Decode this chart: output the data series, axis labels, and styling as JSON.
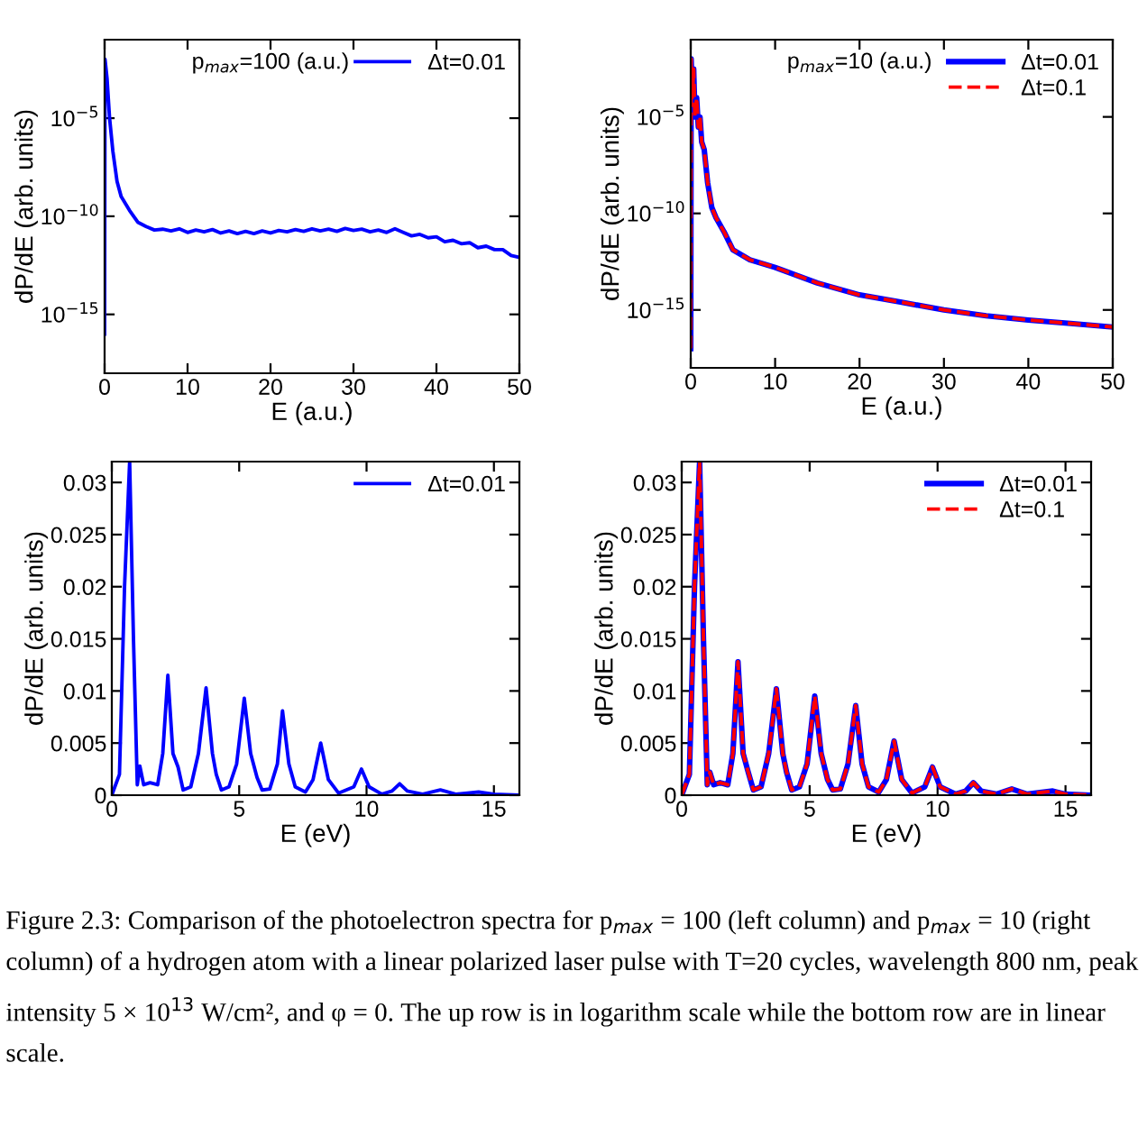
{
  "chart_data": [
    {
      "type": "line",
      "xlabel": "E (a.u.)",
      "ylabel": "dP/dE (arb. units)",
      "log": "y",
      "xlim": [
        0,
        50
      ],
      "xticks": [
        0,
        10,
        20,
        30,
        40,
        50
      ],
      "ylim": [
        1e-18,
        0.1
      ],
      "yticks": [
        {
          "value": 1e-05,
          "label": "10$^{−5}$"
        },
        {
          "value": 1e-10,
          "label": "10$^{−10}$"
        },
        {
          "value": 1e-15,
          "label": "10$^{−15}$"
        }
      ],
      "grid": false,
      "legend": "top right",
      "annotations": [
        "p$_{max}$=100 (a.u.)"
      ],
      "x": [
        0,
        0.05,
        0.3,
        0.6,
        1.0,
        1.5,
        2,
        3,
        4,
        5,
        6,
        7,
        8,
        9,
        10,
        11,
        12,
        13,
        14,
        15,
        16,
        17,
        18,
        19,
        20,
        21,
        22,
        23,
        24,
        25,
        26,
        27,
        28,
        29,
        30,
        31,
        32,
        33,
        34,
        35,
        36,
        37,
        38,
        39,
        40,
        41,
        42,
        43,
        44,
        45,
        46,
        47,
        48,
        49,
        50
      ],
      "series": [
        {
          "name": "Δt=0.01",
          "color": "#0000ff",
          "line_style": "solid",
          "values": [
            1e-16,
            0.01,
            0.001,
            1e-05,
            2e-07,
            6e-09,
            1e-09,
            2e-10,
            5e-11,
            3e-11,
            2e-11,
            2.2e-11,
            1.8e-11,
            2.3e-11,
            1.5e-11,
            2e-11,
            1.6e-11,
            2.1e-11,
            1.4e-11,
            1.8e-11,
            1.3e-11,
            1.7e-11,
            1.3e-11,
            1.8e-11,
            1.4e-11,
            1.9e-11,
            1.6e-11,
            2.1e-11,
            1.7e-11,
            2.3e-11,
            1.8e-11,
            2.2e-11,
            1.7e-11,
            2.4e-11,
            1.9e-11,
            2.2e-11,
            1.6e-11,
            2e-11,
            1.5e-11,
            2.3e-11,
            1.5e-11,
            1e-11,
            1.2e-11,
            8e-12,
            9e-12,
            5e-12,
            6e-12,
            4e-12,
            4.5e-12,
            2.5e-12,
            3e-12,
            2e-12,
            2e-12,
            1e-12,
            8e-13
          ]
        }
      ]
    },
    {
      "type": "line",
      "xlabel": "E (a.u.)",
      "ylabel": "dP/dE (arb. units)",
      "log": "y",
      "xlim": [
        0,
        50
      ],
      "xticks": [
        0,
        10,
        20,
        30,
        40,
        50
      ],
      "ylim": [
        1e-18,
        0.1
      ],
      "yticks": [
        {
          "value": 1e-05,
          "label": "10$^{−5}$"
        },
        {
          "value": 1e-10,
          "label": "10$^{−10}$"
        },
        {
          "value": 1e-15,
          "label": "10$^{−15}$"
        }
      ],
      "grid": false,
      "legend": "top right",
      "annotations": [
        "p$_{max}$=10 (a.u.)"
      ],
      "x": [
        0,
        0.05,
        0.2,
        0.35,
        0.5,
        0.7,
        0.9,
        1.1,
        1.3,
        1.6,
        2,
        2.5,
        3,
        4,
        5,
        7,
        10,
        15,
        20,
        25,
        30,
        35,
        40,
        45,
        50
      ],
      "series": [
        {
          "name": "Δt=0.01",
          "color": "#0000ff",
          "line_style": "solid",
          "values": [
            1e-17,
            0.01,
            0.0001,
            0.003,
            1e-05,
            0.0001,
            3e-06,
            1e-05,
            5e-07,
            2e-07,
            4e-09,
            2e-10,
            6e-11,
            1e-11,
            1.3e-12,
            4e-13,
            1.6e-13,
            2.5e-14,
            6e-15,
            2.5e-15,
            1e-15,
            5e-16,
            3e-16,
            2e-16,
            1.3e-16
          ]
        },
        {
          "name": "Δt=0.1",
          "color": "#ff0000",
          "line_style": "dashed",
          "values": [
            1e-17,
            0.01,
            0.0001,
            0.003,
            1e-05,
            0.0001,
            3e-06,
            1e-05,
            5e-07,
            2e-07,
            4e-09,
            2e-10,
            6e-11,
            1e-11,
            1.3e-12,
            4e-13,
            1.6e-13,
            2.5e-14,
            6e-15,
            2.5e-15,
            1e-15,
            5e-16,
            3e-16,
            2e-16,
            1.3e-16
          ]
        }
      ]
    },
    {
      "type": "line",
      "xlabel": "E (eV)",
      "ylabel": "dP/dE (arb. units)",
      "xlim": [
        0,
        16
      ],
      "xticks": [
        0,
        5,
        10,
        15
      ],
      "ylim": [
        0,
        0.032
      ],
      "yticks": [
        0,
        0.005,
        0.01,
        0.015,
        0.02,
        0.025,
        0.03
      ],
      "grid": false,
      "legend": "top right",
      "x": [
        0,
        0.3,
        0.5,
        0.7,
        0.85,
        1.0,
        1.1,
        1.25,
        1.5,
        1.8,
        2.0,
        2.2,
        2.4,
        2.6,
        2.8,
        3.1,
        3.4,
        3.7,
        3.95,
        4.1,
        4.3,
        4.6,
        4.9,
        5.2,
        5.45,
        5.7,
        5.9,
        6.2,
        6.5,
        6.7,
        6.95,
        7.2,
        7.6,
        7.9,
        8.2,
        8.5,
        8.9,
        9.5,
        9.8,
        10.1,
        10.6,
        11.0,
        11.3,
        11.6,
        12.2,
        12.9,
        13.5,
        14.4,
        15,
        16
      ],
      "series": [
        {
          "name": "Δt=0.01",
          "color": "#0000ff",
          "line_style": "solid",
          "values": [
            0,
            0.002,
            0.02,
            0.032,
            0.015,
            0.001,
            0.0028,
            0.001,
            0.0012,
            0.001,
            0.004,
            0.0115,
            0.004,
            0.0027,
            0.0005,
            0.0008,
            0.004,
            0.0103,
            0.004,
            0.002,
            0.0005,
            0.0008,
            0.003,
            0.0093,
            0.004,
            0.0017,
            0.0005,
            0.0006,
            0.003,
            0.0081,
            0.003,
            0.0008,
            0.0003,
            0.0015,
            0.005,
            0.0015,
            0.0002,
            0.0008,
            0.0025,
            0.0008,
            0.0001,
            0.0004,
            0.0011,
            0.0004,
            0.0001,
            0.0005,
            0.0001,
            0.0003,
            0.0001,
            0
          ]
        }
      ]
    },
    {
      "type": "line",
      "xlabel": "E (eV)",
      "ylabel": "dP/dE (arb. units)",
      "xlim": [
        0,
        16
      ],
      "xticks": [
        0,
        5,
        10,
        15
      ],
      "ylim": [
        0,
        0.032
      ],
      "yticks": [
        0,
        0.005,
        0.01,
        0.015,
        0.02,
        0.025,
        0.03
      ],
      "grid": false,
      "legend": "top right",
      "x": [
        0,
        0.3,
        0.5,
        0.7,
        0.85,
        1.0,
        1.1,
        1.25,
        1.5,
        1.8,
        2.0,
        2.2,
        2.4,
        2.6,
        2.8,
        3.1,
        3.4,
        3.7,
        3.95,
        4.1,
        4.3,
        4.6,
        4.9,
        5.2,
        5.45,
        5.7,
        5.9,
        6.2,
        6.5,
        6.8,
        7.05,
        7.3,
        7.7,
        8.0,
        8.3,
        8.6,
        9.0,
        9.5,
        9.8,
        10.1,
        10.7,
        11.1,
        11.4,
        11.7,
        12.3,
        12.9,
        13.5,
        14.5,
        15,
        16
      ],
      "series": [
        {
          "name": "Δt=0.01",
          "color": "#0000ff",
          "line_style": "solid",
          "values": [
            0,
            0.002,
            0.02,
            0.032,
            0.015,
            0.001,
            0.0022,
            0.001,
            0.0012,
            0.001,
            0.004,
            0.0128,
            0.004,
            0.0022,
            0.0005,
            0.0008,
            0.004,
            0.0102,
            0.004,
            0.0022,
            0.0005,
            0.0008,
            0.003,
            0.0095,
            0.004,
            0.0015,
            0.0005,
            0.0006,
            0.003,
            0.0086,
            0.003,
            0.0008,
            0.0003,
            0.0015,
            0.0052,
            0.0015,
            0.0002,
            0.0008,
            0.0027,
            0.0008,
            0.0001,
            0.0004,
            0.0012,
            0.0004,
            0.0001,
            0.0006,
            0.0001,
            0.0004,
            0.0001,
            0
          ]
        },
        {
          "name": "Δt=0.1",
          "color": "#ff0000",
          "line_style": "dashed",
          "values": [
            0,
            0.002,
            0.02,
            0.032,
            0.015,
            0.001,
            0.0022,
            0.001,
            0.0012,
            0.001,
            0.004,
            0.0128,
            0.004,
            0.0022,
            0.0005,
            0.0008,
            0.004,
            0.0102,
            0.004,
            0.0022,
            0.0005,
            0.0008,
            0.003,
            0.0095,
            0.004,
            0.0015,
            0.0005,
            0.0006,
            0.003,
            0.0086,
            0.003,
            0.0008,
            0.0003,
            0.0015,
            0.0052,
            0.0015,
            0.0002,
            0.0008,
            0.0027,
            0.0008,
            0.0001,
            0.0004,
            0.0012,
            0.0004,
            0.0001,
            0.0006,
            0.0001,
            0.0004,
            0.0001,
            0
          ]
        }
      ]
    },
    {
      "type": "other",
      "annotations": [
        "Figure 2.3: Comparison of the photoelectron spectra for p$_{max}$ = 100 (left column) and p$_{max}$ = 10 (right column) of a hydrogen atom with a linear polarized laser pulse with T=20 cycles, wavelength 800 nm, peak intensity 5 × 10$^{13}$ W/cm², and φ = 0. The up row is in logarithm scale while the bottom row are in linear scale."
      ]
    }
  ]
}
